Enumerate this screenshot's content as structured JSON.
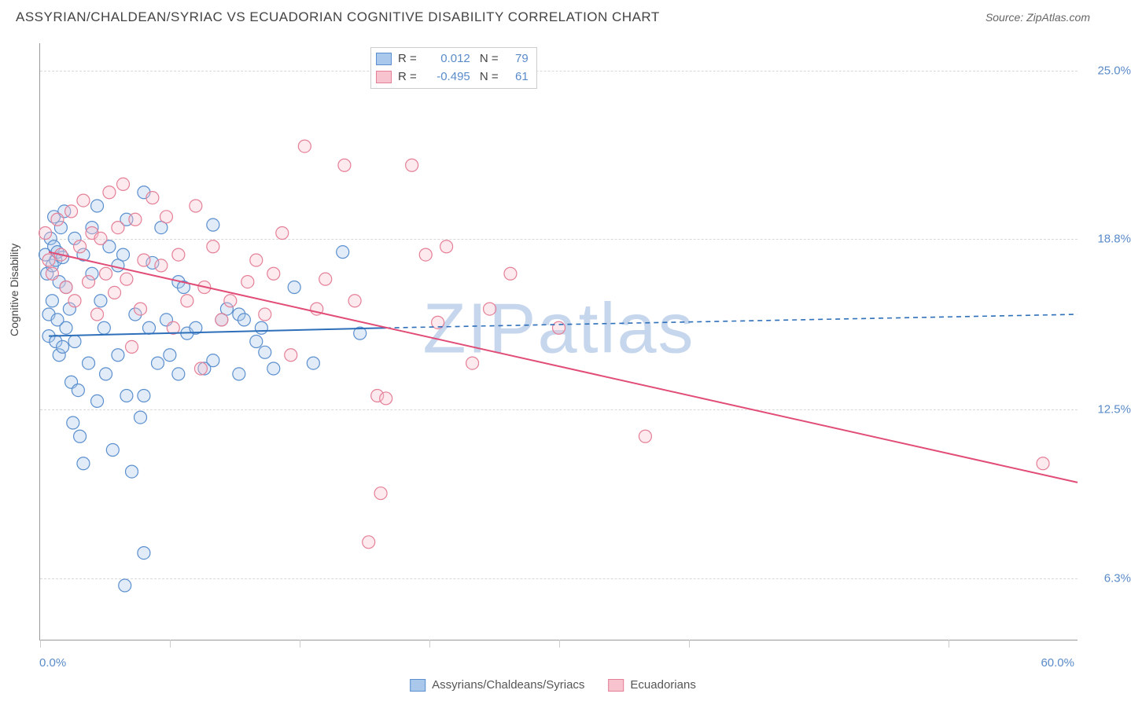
{
  "header": {
    "title": "ASSYRIAN/CHALDEAN/SYRIAC VS ECUADORIAN COGNITIVE DISABILITY CORRELATION CHART",
    "source_label": "Source:",
    "source_name": "ZipAtlas.com"
  },
  "y_axis_label": "Cognitive Disability",
  "watermark": "ZIPatlas",
  "chart": {
    "type": "scatter",
    "xlim": [
      0.0,
      60.0
    ],
    "ylim": [
      4.0,
      26.0
    ],
    "x_min_label": "0.0%",
    "x_max_label": "60.0%",
    "y_grid": [
      {
        "value": 6.3,
        "label": "6.3%"
      },
      {
        "value": 12.5,
        "label": "12.5%"
      },
      {
        "value": 18.8,
        "label": "18.8%"
      },
      {
        "value": 25.0,
        "label": "25.0%"
      }
    ],
    "x_ticks": [
      0,
      7.5,
      15,
      22.5,
      30,
      37.5,
      52.5
    ],
    "background_color": "#ffffff",
    "grid_color": "#d8d8d8",
    "marker_radius": 8,
    "marker_fill_opacity": 0.35,
    "marker_stroke_width": 1.2,
    "line_width": 2
  },
  "series": [
    {
      "id": "assyrian",
      "name": "Assyrians/Chaldeans/Syriacs",
      "color_fill": "#a9c8ec",
      "color_stroke": "#5b8fce",
      "line_color": "#2e6fba",
      "R": "0.012",
      "N": "79",
      "trend": {
        "x1": 0.5,
        "y1": 15.2,
        "x2": 20.0,
        "y2": 15.5,
        "dash_x2": 60.0,
        "dash_y2": 16.0
      },
      "points": [
        [
          0.3,
          18.2
        ],
        [
          0.4,
          17.5
        ],
        [
          0.5,
          16.0
        ],
        [
          0.5,
          15.2
        ],
        [
          0.6,
          18.8
        ],
        [
          0.7,
          17.8
        ],
        [
          0.7,
          16.5
        ],
        [
          0.8,
          18.5
        ],
        [
          0.8,
          19.6
        ],
        [
          0.9,
          18.0
        ],
        [
          0.9,
          15.0
        ],
        [
          1.0,
          18.3
        ],
        [
          1.0,
          15.8
        ],
        [
          1.1,
          17.2
        ],
        [
          1.1,
          14.5
        ],
        [
          1.2,
          19.2
        ],
        [
          1.3,
          18.1
        ],
        [
          1.3,
          14.8
        ],
        [
          1.4,
          19.8
        ],
        [
          1.5,
          17.0
        ],
        [
          1.5,
          15.5
        ],
        [
          1.7,
          16.2
        ],
        [
          1.8,
          13.5
        ],
        [
          1.9,
          12.0
        ],
        [
          2.0,
          18.8
        ],
        [
          2.0,
          15.0
        ],
        [
          2.2,
          13.2
        ],
        [
          2.3,
          11.5
        ],
        [
          2.5,
          18.2
        ],
        [
          2.5,
          10.5
        ],
        [
          2.8,
          14.2
        ],
        [
          3.0,
          19.2
        ],
        [
          3.0,
          17.5
        ],
        [
          3.3,
          20.0
        ],
        [
          3.3,
          12.8
        ],
        [
          3.5,
          16.5
        ],
        [
          3.7,
          15.5
        ],
        [
          3.8,
          13.8
        ],
        [
          4.0,
          18.5
        ],
        [
          4.2,
          11.0
        ],
        [
          4.5,
          17.8
        ],
        [
          4.5,
          14.5
        ],
        [
          4.8,
          18.2
        ],
        [
          4.9,
          6.0
        ],
        [
          5.0,
          13.0
        ],
        [
          5.0,
          19.5
        ],
        [
          5.3,
          10.2
        ],
        [
          5.5,
          16.0
        ],
        [
          5.8,
          12.2
        ],
        [
          6.0,
          20.5
        ],
        [
          6.0,
          13.0
        ],
        [
          6.0,
          7.2
        ],
        [
          6.3,
          15.5
        ],
        [
          6.5,
          17.9
        ],
        [
          6.8,
          14.2
        ],
        [
          7.0,
          19.2
        ],
        [
          7.3,
          15.8
        ],
        [
          7.5,
          14.5
        ],
        [
          8.0,
          17.2
        ],
        [
          8.0,
          13.8
        ],
        [
          8.3,
          17.0
        ],
        [
          8.5,
          15.3
        ],
        [
          9.0,
          15.5
        ],
        [
          9.5,
          14.0
        ],
        [
          10.0,
          19.3
        ],
        [
          10.0,
          14.3
        ],
        [
          10.5,
          15.8
        ],
        [
          10.8,
          16.2
        ],
        [
          11.5,
          16.0
        ],
        [
          11.5,
          13.8
        ],
        [
          11.8,
          15.8
        ],
        [
          12.5,
          15.0
        ],
        [
          12.8,
          15.5
        ],
        [
          13.0,
          14.6
        ],
        [
          13.5,
          14.0
        ],
        [
          14.7,
          17.0
        ],
        [
          15.8,
          14.2
        ],
        [
          17.5,
          18.3
        ],
        [
          18.5,
          15.3
        ]
      ]
    },
    {
      "id": "ecuadorian",
      "name": "Ecuadorians",
      "color_fill": "#f6c3ce",
      "color_stroke": "#e57f97",
      "line_color": "#e14d76",
      "R": "-0.495",
      "N": "61",
      "trend": {
        "x1": 0.5,
        "y1": 18.3,
        "x2": 60.0,
        "y2": 9.8
      },
      "points": [
        [
          0.3,
          19.0
        ],
        [
          0.5,
          18.0
        ],
        [
          0.7,
          17.5
        ],
        [
          1.0,
          19.5
        ],
        [
          1.2,
          18.2
        ],
        [
          1.5,
          17.0
        ],
        [
          1.8,
          19.8
        ],
        [
          2.0,
          16.5
        ],
        [
          2.3,
          18.5
        ],
        [
          2.5,
          20.2
        ],
        [
          2.8,
          17.2
        ],
        [
          3.0,
          19.0
        ],
        [
          3.3,
          16.0
        ],
        [
          3.5,
          18.8
        ],
        [
          3.8,
          17.5
        ],
        [
          4.0,
          20.5
        ],
        [
          4.3,
          16.8
        ],
        [
          4.5,
          19.2
        ],
        [
          4.8,
          20.8
        ],
        [
          5.0,
          17.3
        ],
        [
          5.3,
          14.8
        ],
        [
          5.5,
          19.5
        ],
        [
          5.8,
          16.2
        ],
        [
          6.0,
          18.0
        ],
        [
          6.5,
          20.3
        ],
        [
          7.0,
          17.8
        ],
        [
          7.3,
          19.6
        ],
        [
          7.7,
          15.5
        ],
        [
          8.0,
          18.2
        ],
        [
          8.5,
          16.5
        ],
        [
          9.0,
          20.0
        ],
        [
          9.3,
          14.0
        ],
        [
          9.5,
          17.0
        ],
        [
          10.0,
          18.5
        ],
        [
          10.5,
          15.8
        ],
        [
          11.0,
          16.5
        ],
        [
          12.0,
          17.2
        ],
        [
          12.5,
          18.0
        ],
        [
          13.0,
          16.0
        ],
        [
          13.5,
          17.5
        ],
        [
          14.0,
          19.0
        ],
        [
          14.5,
          14.5
        ],
        [
          15.3,
          22.2
        ],
        [
          16.0,
          16.2
        ],
        [
          16.5,
          17.3
        ],
        [
          17.6,
          21.5
        ],
        [
          18.2,
          16.5
        ],
        [
          19.0,
          7.6
        ],
        [
          19.5,
          13.0
        ],
        [
          19.7,
          9.4
        ],
        [
          20.0,
          12.9
        ],
        [
          21.5,
          21.5
        ],
        [
          22.3,
          18.2
        ],
        [
          23.0,
          15.7
        ],
        [
          23.5,
          18.5
        ],
        [
          25.0,
          14.2
        ],
        [
          26.0,
          16.2
        ],
        [
          27.2,
          17.5
        ],
        [
          30.0,
          15.5
        ],
        [
          35.0,
          11.5
        ],
        [
          58.0,
          10.5
        ]
      ]
    }
  ],
  "legend": {
    "series1": "Assyrians/Chaldeans/Syriacs",
    "series2": "Ecuadorians"
  }
}
